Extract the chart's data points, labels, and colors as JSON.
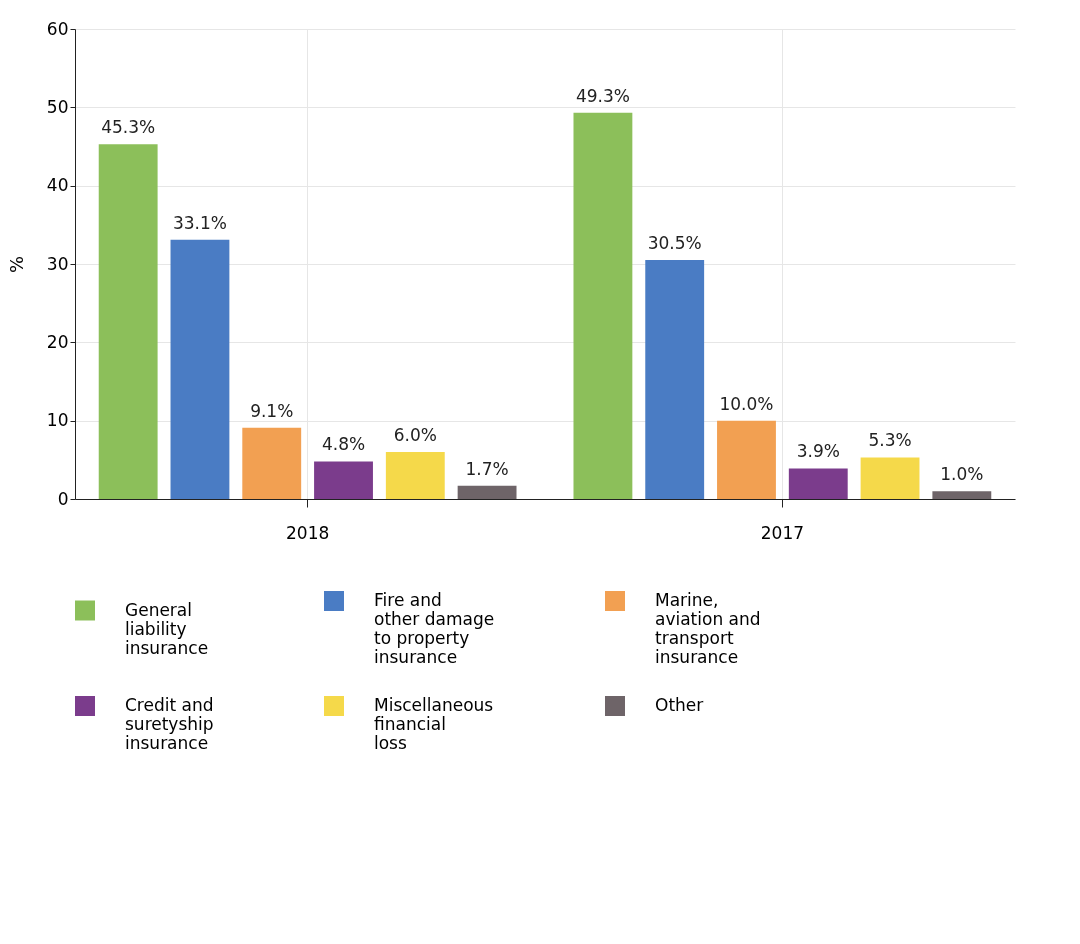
{
  "chart_data": {
    "type": "bar",
    "ylabel": "%",
    "categories": [
      "2018",
      "2017"
    ],
    "series": [
      {
        "name": "General liability insurance",
        "color": "#8cbf5a",
        "values": [
          45.3,
          49.3
        ],
        "value_labels": [
          "45.3%",
          "49.3%"
        ]
      },
      {
        "name": "Fire and other damage to property insurance",
        "color": "#4a7cc4",
        "values": [
          33.1,
          30.5
        ],
        "value_labels": [
          "33.1%",
          "30.5%"
        ]
      },
      {
        "name": "Marine, aviation and transport insurance",
        "color": "#f2a052",
        "values": [
          9.1,
          10.0
        ],
        "value_labels": [
          "9.1%",
          "10.0%"
        ]
      },
      {
        "name": "Credit and suretyship insurance",
        "color": "#7b3c8c",
        "values": [
          4.8,
          3.9
        ],
        "value_labels": [
          "4.8%",
          "3.9%"
        ]
      },
      {
        "name": "Miscellaneous financial loss",
        "color": "#f5d94a",
        "values": [
          6.0,
          5.3
        ],
        "value_labels": [
          "6.0%",
          "5.3%"
        ]
      },
      {
        "name": "Other",
        "color": "#6e6468",
        "values": [
          1.7,
          1.0
        ],
        "value_labels": [
          "1.7%",
          "1.0%"
        ]
      }
    ],
    "ylim": [
      0,
      60
    ],
    "yticks": [
      0,
      10,
      20,
      30,
      40,
      50,
      60
    ],
    "grid": true,
    "legend": "bottom"
  }
}
